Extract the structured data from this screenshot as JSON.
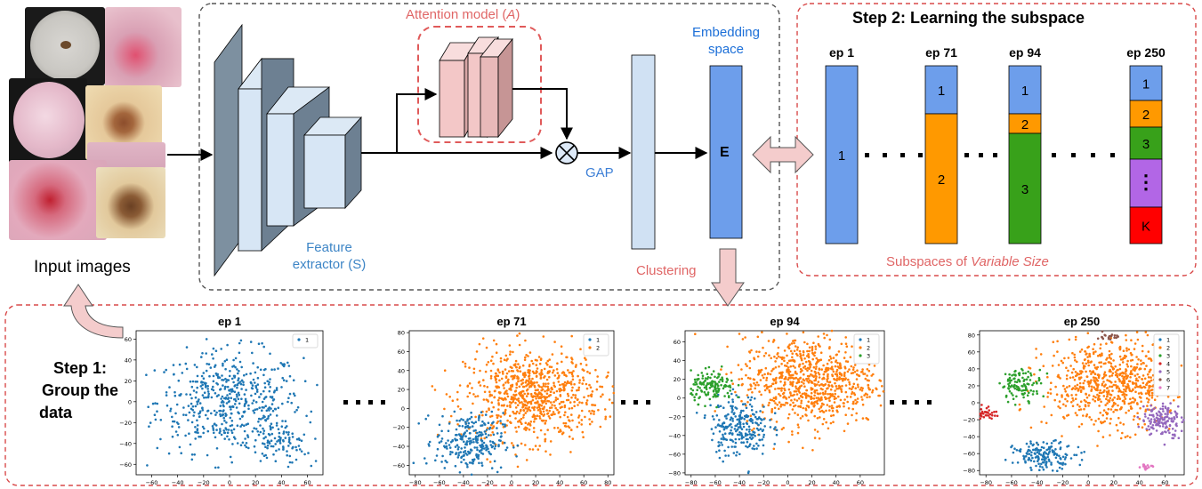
{
  "input": {
    "label": "Input images"
  },
  "network": {
    "attention_label": "Attention model (",
    "attention_symbol": "A",
    "attention_close": ")",
    "feature_label_line1": "Feature",
    "feature_label_line2": "extractor (S)",
    "gap_label": "GAP",
    "embedding_label_line1": "Embedding",
    "embedding_label_line2": "space",
    "embedding_symbol": "E",
    "clustering_label": "Clustering"
  },
  "step2": {
    "title": "Step 2: Learning the subspace",
    "subtitle_prefix": "Subspaces of ",
    "subtitle_em": "Variable Size",
    "columns": [
      {
        "epoch": "ep 1",
        "segments": [
          {
            "label": "1",
            "color": "#6d9eeb",
            "weight": 1
          }
        ]
      },
      {
        "epoch": "ep 71",
        "segments": [
          {
            "label": "1",
            "color": "#6d9eeb",
            "weight": 0.27
          },
          {
            "label": "2",
            "color": "#ff9900",
            "weight": 0.73
          }
        ]
      },
      {
        "epoch": "ep 94",
        "segments": [
          {
            "label": "1",
            "color": "#6d9eeb",
            "weight": 0.27
          },
          {
            "label": "2",
            "color": "#ff9900",
            "weight": 0.11
          },
          {
            "label": "3",
            "color": "#38a11a",
            "weight": 0.62
          }
        ]
      },
      {
        "epoch": "ep 250",
        "segments": [
          {
            "label": "1",
            "color": "#6d9eeb",
            "weight": 0.195
          },
          {
            "label": "2",
            "color": "#ff9900",
            "weight": 0.15
          },
          {
            "label": "3",
            "color": "#38a11a",
            "weight": 0.18
          },
          {
            "label": "⋮",
            "color": "#b266e6",
            "weight": 0.27
          },
          {
            "label": "K",
            "color": "#ff0000",
            "weight": 0.205
          }
        ]
      }
    ]
  },
  "step1": {
    "title_line1": "Step 1:",
    "title_line2": "Group the",
    "title_line3": "data",
    "plots": [
      {
        "title": "ep 1",
        "legend": [
          "1"
        ],
        "xticks": [
          "-60",
          "-40",
          "-20",
          "0",
          "20",
          "40",
          "60"
        ],
        "yticks": [
          "60",
          "40",
          "20",
          "0",
          "-20",
          "-40",
          "-60"
        ],
        "xlim": [
          -72,
          72
        ],
        "ylim": [
          -70,
          68
        ]
      },
      {
        "title": "ep 71",
        "legend": [
          "1",
          "2"
        ],
        "xticks": [
          "-80",
          "-60",
          "-40",
          "-20",
          "0",
          "20",
          "40",
          "60",
          "80"
        ],
        "yticks": [
          "80",
          "60",
          "40",
          "20",
          "0",
          "-20",
          "-40",
          "-60"
        ],
        "xlim": [
          -85,
          85
        ],
        "ylim": [
          -70,
          82
        ]
      },
      {
        "title": "ep 94",
        "legend": [
          "1",
          "2",
          "3"
        ],
        "xticks": [
          "-80",
          "-60",
          "-40",
          "-20",
          "0",
          "20",
          "40",
          "60"
        ],
        "yticks": [
          "60",
          "40",
          "20",
          "0",
          "-20",
          "-40",
          "-60",
          "-80"
        ],
        "xlim": [
          -85,
          80
        ],
        "ylim": [
          -82,
          72
        ]
      },
      {
        "title": "ep 250",
        "legend": [
          "1",
          "2",
          "3",
          "4",
          "5",
          "6",
          "7"
        ],
        "xticks": [
          "-80",
          "-60",
          "-40",
          "-20",
          "0",
          "20",
          "40",
          "60"
        ],
        "yticks": [
          "80",
          "60",
          "40",
          "20",
          "0",
          "-20",
          "-40",
          "-60",
          "-80"
        ],
        "xlim": [
          -85,
          75
        ],
        "ylim": [
          -85,
          85
        ]
      }
    ],
    "series_colors": [
      "#1f77b4",
      "#ff7f0e",
      "#2ca02c",
      "#d62728",
      "#9467bd",
      "#8c564b",
      "#e377c2"
    ]
  },
  "dots": "• • • •"
}
